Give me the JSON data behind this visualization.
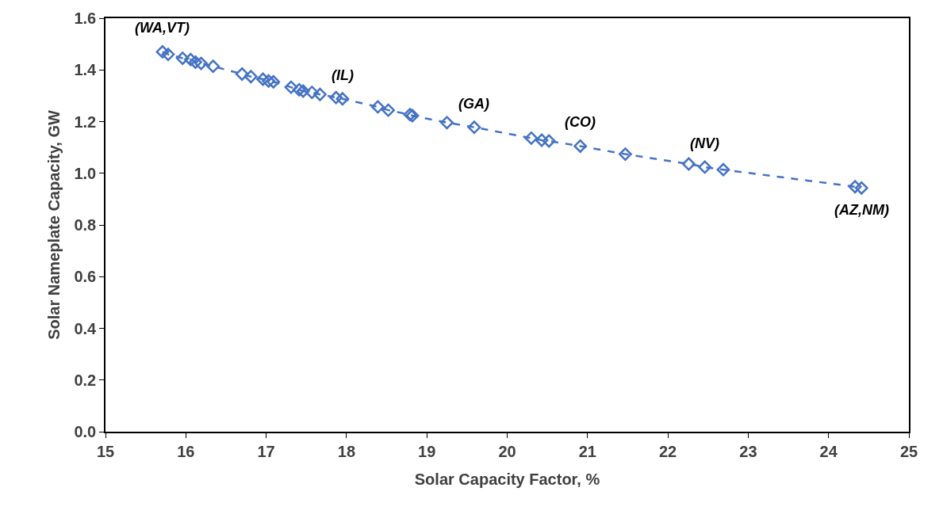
{
  "chart_data": {
    "type": "line",
    "xlabel": "Solar Capacity Factor, %",
    "ylabel": "Solar Nameplate Capacity, GW",
    "x": [
      15.71,
      15.78,
      15.96,
      16.06,
      16.12,
      16.19,
      16.34,
      16.7,
      16.81,
      16.96,
      17.03,
      17.09,
      17.31,
      17.41,
      17.46,
      17.57,
      17.67,
      17.87,
      17.95,
      18.39,
      18.52,
      18.79,
      18.82,
      19.25,
      19.59,
      20.3,
      20.43,
      20.52,
      20.91,
      21.47,
      22.26,
      22.46,
      22.69,
      24.33,
      24.41
    ],
    "series": [
      {
        "color": "#4472c4",
        "values": [
          1.47,
          1.46,
          1.445,
          1.44,
          1.43,
          1.425,
          1.414,
          1.384,
          1.374,
          1.364,
          1.357,
          1.354,
          1.333,
          1.323,
          1.318,
          1.313,
          1.305,
          1.293,
          1.288,
          1.257,
          1.244,
          1.227,
          1.223,
          1.196,
          1.178,
          1.136,
          1.128,
          1.125,
          1.105,
          1.074,
          1.036,
          1.024,
          1.014,
          0.948,
          0.943
        ]
      }
    ],
    "marker": "diamond",
    "line_style": "dashed",
    "xlim": [
      15,
      25
    ],
    "xticks": [
      15,
      16,
      17,
      18,
      19,
      20,
      21,
      22,
      23,
      24,
      25
    ],
    "ylim": [
      0,
      1.6
    ],
    "yticks": [
      {
        "value": 0,
        "label": "0.0"
      },
      {
        "value": 0.2,
        "label": "0.2"
      },
      {
        "value": 0.4,
        "label": "0.4"
      },
      {
        "value": 0.6,
        "label": "0.6"
      },
      {
        "value": 0.8,
        "label": "0.8"
      },
      {
        "value": 1.0,
        "label": "1.0"
      },
      {
        "value": 1.2,
        "label": "1.2"
      },
      {
        "value": 1.4,
        "label": "1.4"
      },
      {
        "value": 1.6,
        "label": "1.6"
      }
    ],
    "annotations": [
      {
        "text": "(WA,VT)",
        "x": 15.71,
        "y": 1.47
      },
      {
        "text": "(IL)",
        "x": 17.95,
        "y": 1.288
      },
      {
        "text": "(GA)",
        "x": 19.59,
        "y": 1.178
      },
      {
        "text": "(CO)",
        "x": 20.91,
        "y": 1.105
      },
      {
        "text": "(NV)",
        "x": 22.46,
        "y": 1.024
      },
      {
        "text": "(AZ,NM)",
        "x": 24.41,
        "y": 0.943
      }
    ]
  }
}
